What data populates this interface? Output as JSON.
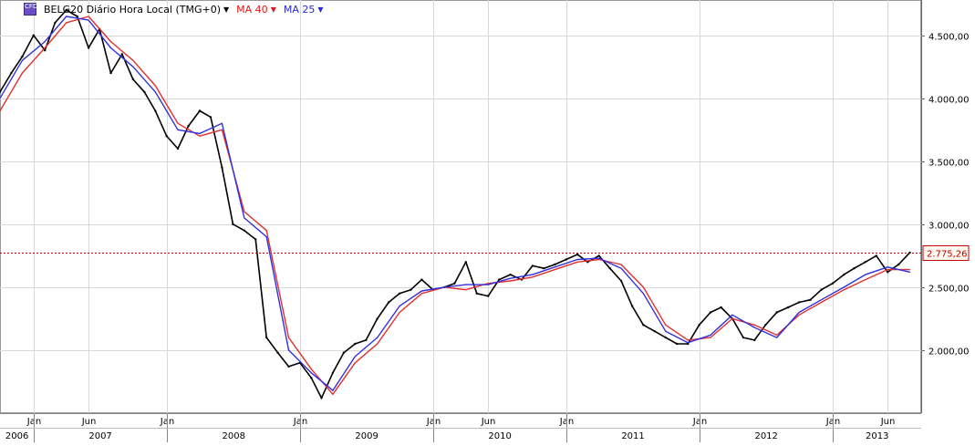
{
  "legend": {
    "instrument_label": "BELG20 Diário Hora Local (TMG+0)",
    "ma40_label": "MA 40",
    "ma25_label": "MA 25",
    "icon": "chart-instrument-icon"
  },
  "colors": {
    "price": "#000000",
    "down_candle": "#c00000",
    "ma40": "#e03030",
    "ma25": "#3030e0",
    "current_line": "#c00000",
    "grid": "#d8d8d8"
  },
  "current_price": {
    "value": 2775.26,
    "label": "2.775,26"
  },
  "chart_data": {
    "type": "line",
    "title": "",
    "xlabel": "",
    "ylabel": "",
    "ylim": [
      1500,
      4780
    ],
    "xlim": [
      "2006-10-01",
      "2013-09-01"
    ],
    "grid": true,
    "y_ticks": [
      {
        "value": 2000,
        "label": "2.000,00"
      },
      {
        "value": 2500,
        "label": "2.500,00"
      },
      {
        "value": 3000,
        "label": "3.000,00"
      },
      {
        "value": 3500,
        "label": "3.500,00"
      },
      {
        "value": 4000,
        "label": "4.000,00"
      },
      {
        "value": 4500,
        "label": "4.500,00"
      }
    ],
    "month_ticks": [
      {
        "date": "2007-01-01",
        "label": "Jan"
      },
      {
        "date": "2007-06-01",
        "label": "Jun"
      },
      {
        "date": "2008-01-01",
        "label": "Jan"
      },
      {
        "date": "2009-01-01",
        "label": "Jan"
      },
      {
        "date": "2010-01-01",
        "label": "Jan"
      },
      {
        "date": "2010-06-01",
        "label": "Jun"
      },
      {
        "date": "2011-01-01",
        "label": "Jan"
      },
      {
        "date": "2012-01-01",
        "label": "Jan"
      },
      {
        "date": "2013-01-01",
        "label": "Jan"
      },
      {
        "date": "2013-06-01",
        "label": "Jun"
      }
    ],
    "year_ticks": [
      {
        "start": "2006-10-01",
        "end": "2007-01-01",
        "label": "2006"
      },
      {
        "start": "2007-01-01",
        "end": "2008-01-01",
        "label": "2007"
      },
      {
        "start": "2008-01-01",
        "end": "2009-01-01",
        "label": "2008"
      },
      {
        "start": "2009-01-01",
        "end": "2010-01-01",
        "label": "2009"
      },
      {
        "start": "2010-01-01",
        "end": "2011-01-01",
        "label": "2010"
      },
      {
        "start": "2011-01-01",
        "end": "2012-01-01",
        "label": "2011"
      },
      {
        "start": "2012-01-01",
        "end": "2013-01-01",
        "label": "2012"
      },
      {
        "start": "2013-01-01",
        "end": "2013-09-01",
        "label": "2013"
      }
    ],
    "series": [
      {
        "name": "BELG20",
        "x": [
          "2006-10-01",
          "2006-11-01",
          "2006-12-01",
          "2007-01-01",
          "2007-02-01",
          "2007-03-01",
          "2007-04-01",
          "2007-05-01",
          "2007-06-01",
          "2007-07-01",
          "2007-08-01",
          "2007-09-01",
          "2007-10-01",
          "2007-11-01",
          "2007-12-01",
          "2008-01-01",
          "2008-02-01",
          "2008-03-01",
          "2008-04-01",
          "2008-05-01",
          "2008-06-01",
          "2008-07-01",
          "2008-08-01",
          "2008-09-01",
          "2008-10-01",
          "2008-11-01",
          "2008-12-01",
          "2009-01-01",
          "2009-02-01",
          "2009-03-01",
          "2009-04-01",
          "2009-05-01",
          "2009-06-01",
          "2009-07-01",
          "2009-08-01",
          "2009-09-01",
          "2009-10-01",
          "2009-11-01",
          "2009-12-01",
          "2010-01-01",
          "2010-02-01",
          "2010-03-01",
          "2010-04-01",
          "2010-05-01",
          "2010-06-01",
          "2010-07-01",
          "2010-08-01",
          "2010-09-01",
          "2010-10-01",
          "2010-11-01",
          "2010-12-01",
          "2011-01-01",
          "2011-02-01",
          "2011-03-01",
          "2011-04-01",
          "2011-05-01",
          "2011-06-01",
          "2011-07-01",
          "2011-08-01",
          "2011-09-01",
          "2011-10-01",
          "2011-11-01",
          "2011-12-01",
          "2012-01-01",
          "2012-02-01",
          "2012-03-01",
          "2012-04-01",
          "2012-05-01",
          "2012-06-01",
          "2012-07-01",
          "2012-08-01",
          "2012-09-01",
          "2012-10-01",
          "2012-11-01",
          "2012-12-01",
          "2013-01-01",
          "2013-02-01",
          "2013-03-01",
          "2013-04-01",
          "2013-05-01",
          "2013-06-01",
          "2013-07-01",
          "2013-08-01"
        ],
        "values": [
          4050,
          4200,
          4330,
          4500,
          4380,
          4600,
          4700,
          4650,
          4400,
          4550,
          4200,
          4350,
          4150,
          4050,
          3900,
          3700,
          3600,
          3780,
          3900,
          3850,
          3450,
          3000,
          2950,
          2880,
          2100,
          1980,
          1870,
          1900,
          1780,
          1620,
          1820,
          1980,
          2050,
          2080,
          2250,
          2380,
          2450,
          2480,
          2560,
          2480,
          2500,
          2530,
          2700,
          2450,
          2430,
          2560,
          2600,
          2560,
          2670,
          2650,
          2680,
          2720,
          2760,
          2700,
          2750,
          2650,
          2550,
          2350,
          2200,
          2150,
          2100,
          2050,
          2050,
          2200,
          2300,
          2340,
          2250,
          2100,
          2080,
          2200,
          2300,
          2340,
          2380,
          2400,
          2480,
          2530,
          2600,
          2650,
          2700,
          2750,
          2620,
          2680,
          2775
        ]
      },
      {
        "name": "MA 40",
        "x": [
          "2006-10-01",
          "2006-12-01",
          "2007-02-01",
          "2007-04-01",
          "2007-06-01",
          "2007-08-01",
          "2007-10-01",
          "2007-12-01",
          "2008-02-01",
          "2008-04-01",
          "2008-06-01",
          "2008-08-01",
          "2008-10-01",
          "2008-12-01",
          "2009-02-01",
          "2009-04-01",
          "2009-06-01",
          "2009-08-01",
          "2009-10-01",
          "2009-12-01",
          "2010-02-01",
          "2010-04-01",
          "2010-06-01",
          "2010-08-01",
          "2010-10-01",
          "2010-12-01",
          "2011-02-01",
          "2011-04-01",
          "2011-06-01",
          "2011-08-01",
          "2011-10-01",
          "2011-12-01",
          "2012-02-01",
          "2012-04-01",
          "2012-06-01",
          "2012-08-01",
          "2012-10-01",
          "2012-12-01",
          "2013-02-01",
          "2013-04-01",
          "2013-06-01",
          "2013-08-01"
        ],
        "values": [
          3900,
          4200,
          4400,
          4600,
          4650,
          4450,
          4300,
          4100,
          3800,
          3700,
          3750,
          3100,
          2950,
          2100,
          1850,
          1650,
          1900,
          2050,
          2300,
          2450,
          2500,
          2480,
          2530,
          2550,
          2580,
          2640,
          2700,
          2720,
          2680,
          2500,
          2200,
          2080,
          2100,
          2250,
          2200,
          2120,
          2280,
          2380,
          2480,
          2560,
          2640,
          2640
        ]
      },
      {
        "name": "MA 25",
        "x": [
          "2006-10-01",
          "2006-12-01",
          "2007-02-01",
          "2007-04-01",
          "2007-06-01",
          "2007-08-01",
          "2007-10-01",
          "2007-12-01",
          "2008-02-01",
          "2008-04-01",
          "2008-06-01",
          "2008-08-01",
          "2008-10-01",
          "2008-12-01",
          "2009-02-01",
          "2009-04-01",
          "2009-06-01",
          "2009-08-01",
          "2009-10-01",
          "2009-12-01",
          "2010-02-01",
          "2010-04-01",
          "2010-06-01",
          "2010-08-01",
          "2010-10-01",
          "2010-12-01",
          "2011-02-01",
          "2011-04-01",
          "2011-06-01",
          "2011-08-01",
          "2011-10-01",
          "2011-12-01",
          "2012-02-01",
          "2012-04-01",
          "2012-06-01",
          "2012-08-01",
          "2012-10-01",
          "2012-12-01",
          "2013-02-01",
          "2013-04-01",
          "2013-06-01",
          "2013-08-01"
        ],
        "values": [
          4000,
          4300,
          4450,
          4650,
          4620,
          4400,
          4250,
          4050,
          3750,
          3720,
          3800,
          3050,
          2900,
          2000,
          1820,
          1680,
          1950,
          2100,
          2350,
          2470,
          2500,
          2520,
          2520,
          2570,
          2600,
          2660,
          2720,
          2730,
          2650,
          2450,
          2150,
          2060,
          2120,
          2280,
          2180,
          2100,
          2300,
          2400,
          2500,
          2600,
          2660,
          2620
        ]
      }
    ]
  }
}
